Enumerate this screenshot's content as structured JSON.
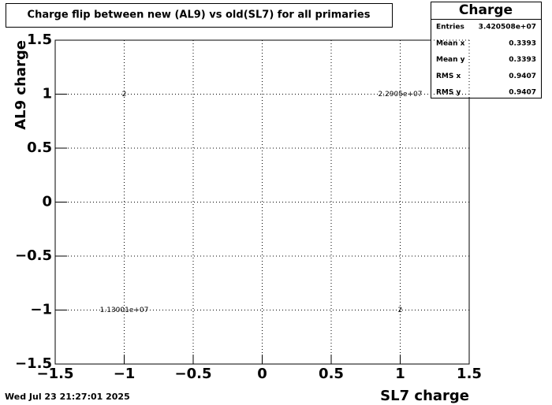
{
  "chart_data": {
    "type": "text2d",
    "title": "Charge flip between new (AL9) vs old(SL7) for all primaries",
    "x_label": "SL7 charge",
    "y_label": "AL9 charge",
    "x": [
      -1,
      1,
      -1,
      1
    ],
    "y": [
      1,
      1,
      -1,
      -1
    ],
    "values": [
      2,
      22905000,
      11300100,
      2
    ],
    "value_labels": [
      "2",
      "2.2905e+07",
      "1.13001e+07",
      "2"
    ],
    "xlim": [
      -1.5,
      1.5
    ],
    "ylim": [
      -1.5,
      1.5
    ],
    "xticks": [
      {
        "value": -1.5,
        "label": "−1.5"
      },
      {
        "value": -1,
        "label": "−1"
      },
      {
        "value": -0.5,
        "label": "−0.5"
      },
      0,
      0.5,
      1,
      1.5
    ],
    "yticks": [
      {
        "value": -1.5,
        "label": "−1.5"
      },
      {
        "value": -1,
        "label": "−1"
      },
      {
        "value": -0.5,
        "label": "−0.5"
      },
      0,
      0.5,
      1,
      1.5
    ],
    "grid": true,
    "stats": {
      "title": "Charge",
      "entries": [
        {
          "name": "Entries",
          "value": {
            "value": 34205080,
            "label": "3.420508e+07"
          }
        },
        {
          "name": "Mean x",
          "value": 0.3393
        },
        {
          "name": "Mean y",
          "value": 0.3393
        },
        {
          "name": "RMS x",
          "value": 0.9407
        },
        {
          "name": "RMS y",
          "value": 0.9407
        }
      ]
    },
    "timestamp": "Wed Jul 23 21:27:01 2025"
  }
}
